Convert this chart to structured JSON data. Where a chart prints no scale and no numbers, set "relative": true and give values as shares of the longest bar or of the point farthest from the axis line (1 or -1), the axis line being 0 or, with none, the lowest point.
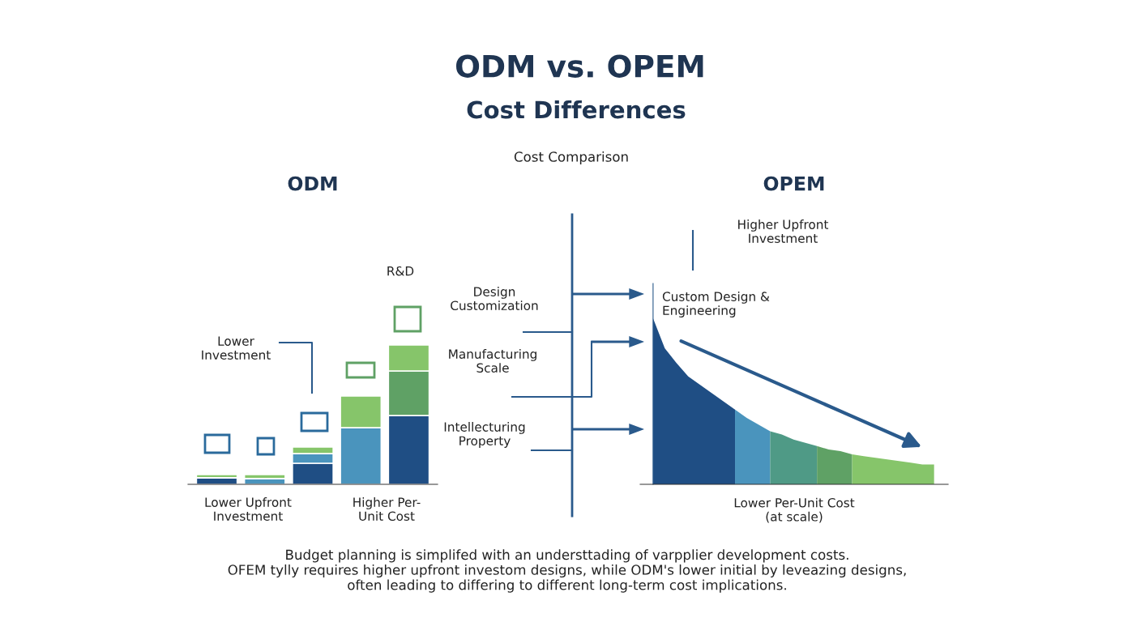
{
  "chart_data": [
    {
      "type": "bar",
      "title": "ODM",
      "stacked": true,
      "relative": true,
      "categories": [
        null,
        null,
        null,
        null,
        null
      ],
      "series": [
        {
          "color": "#1f4e84",
          "values": [
            0.047,
            null,
            0.151,
            null,
            0.494
          ]
        },
        {
          "color": "#4a94bd",
          "values": [
            null,
            0.041,
            0.07,
            0.407,
            null
          ]
        },
        {
          "color": "#5fa165",
          "values": [
            null,
            null,
            null,
            null,
            0.32
          ]
        },
        {
          "color": "#86c56a",
          "values": [
            0.023,
            0.029,
            0.047,
            0.227,
            0.186
          ]
        }
      ],
      "annotations": [
        "ODM vs. OPEM",
        "Cost Differences",
        "Cost Comparison",
        "R&D",
        "Lower\nInvestment",
        "Lower Upfront\nInvestment",
        "Higher Per-\nUnit Cost",
        "Design\nCustomization",
        "Manufacturing\nScale",
        "Intellecturing\nProperty",
        "Budget planning is simplifed with an understtading of varpplier development costs.\nOFEM tylly requires higher upfront investom designs, while ODM's lower initial by leveazing designs,\noften leading to differing to different long-term cost implications."
      ]
    },
    {
      "type": "area",
      "title": "OPEM",
      "relative": true,
      "xlabel": "Lower Per-Unit Cost\n(at scale)",
      "categories": [
        null,
        null,
        null,
        null,
        null,
        null,
        null,
        null,
        null,
        null,
        null,
        null,
        null,
        null,
        null,
        null,
        null,
        null,
        null,
        null,
        null,
        null,
        null,
        null,
        null
      ],
      "series": [
        {
          "color": "#1f4e84",
          "values": [
            1,
            0.82,
            0.73,
            0.65,
            0.6,
            0.55,
            0.5,
            0.45,
            null,
            null,
            null,
            null,
            null,
            null,
            null,
            null,
            null,
            null,
            null,
            null,
            null,
            null,
            null,
            null,
            null
          ]
        },
        {
          "color": "#4a94bd",
          "values": [
            null,
            null,
            null,
            null,
            null,
            null,
            null,
            0.45,
            0.4,
            0.36,
            0.32,
            null,
            null,
            null,
            null,
            null,
            null,
            null,
            null,
            null,
            null,
            null,
            null,
            null,
            null
          ]
        },
        {
          "color": "#4f9a86",
          "values": [
            null,
            null,
            null,
            null,
            null,
            null,
            null,
            null,
            null,
            null,
            0.32,
            0.3,
            0.27,
            0.25,
            0.23,
            null,
            null,
            null,
            null,
            null,
            null,
            null,
            null,
            null,
            null
          ]
        },
        {
          "color": "#5fa165",
          "values": [
            null,
            null,
            null,
            null,
            null,
            null,
            null,
            null,
            null,
            null,
            null,
            null,
            null,
            null,
            0.23,
            0.21,
            0.2,
            0.18,
            null,
            null,
            null,
            null,
            null,
            null,
            null
          ]
        },
        {
          "color": "#86c56a",
          "values": [
            null,
            null,
            null,
            null,
            null,
            null,
            null,
            null,
            null,
            null,
            null,
            null,
            null,
            null,
            null,
            null,
            null,
            0.18,
            0.17,
            0.16,
            0.15,
            0.14,
            0.13,
            0.12,
            0.12
          ]
        }
      ],
      "annotations": [
        "Higher Upfront\nInvestment",
        "Custom Design &\nEngineering"
      ]
    }
  ]
}
